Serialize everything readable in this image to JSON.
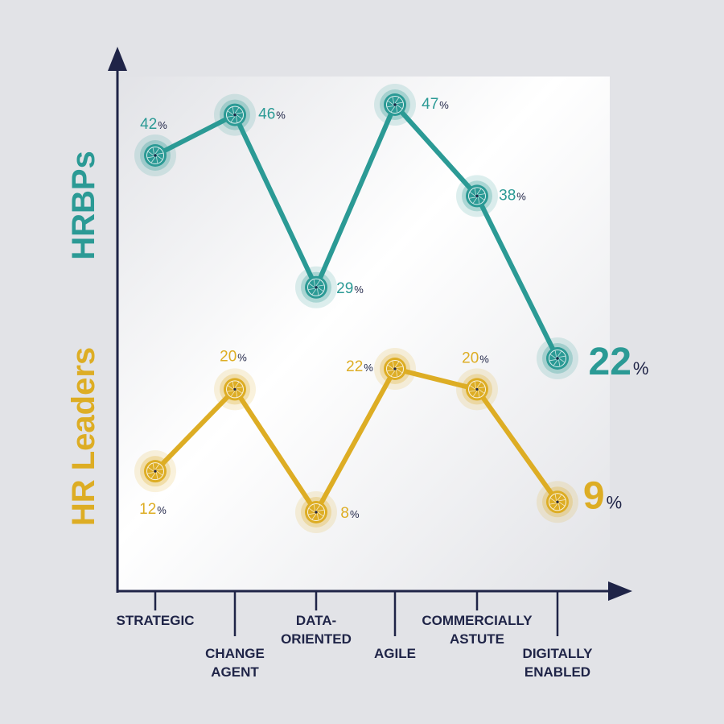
{
  "colors": {
    "teal": "#2b9a95",
    "gold": "#ddad24",
    "axis": "#1f2447",
    "background": "#e2e3e7",
    "pct_sign": "#1f2447"
  },
  "chart_data": {
    "type": "line",
    "categories": [
      "STRATEGIC",
      "CHANGE AGENT",
      "DATA-ORIENTED",
      "AGILE",
      "COMMERCIALLY ASTUTE",
      "DIGITALLY ENABLED"
    ],
    "category_lines": [
      [
        "STRATEGIC"
      ],
      [
        "CHANGE",
        "AGENT"
      ],
      [
        "DATA-",
        "ORIENTED"
      ],
      [
        "AGILE"
      ],
      [
        "COMMERCIALLY",
        "ASTUTE"
      ],
      [
        "DIGITALLY",
        "ENABLED"
      ]
    ],
    "series": [
      {
        "name": "HRBPs",
        "color": "#2b9a95",
        "values": [
          42,
          46,
          29,
          47,
          38,
          22
        ],
        "labels": [
          "42",
          "46",
          "29",
          "47",
          "38",
          "22"
        ]
      },
      {
        "name": "HR Leaders",
        "color": "#ddad24",
        "values": [
          12,
          20,
          8,
          22,
          20,
          9
        ],
        "labels": [
          "12",
          "20",
          "8",
          "22",
          "20",
          "9"
        ]
      }
    ],
    "unit": "%",
    "grid": false,
    "legend": "rotated series names along the y-axis"
  }
}
